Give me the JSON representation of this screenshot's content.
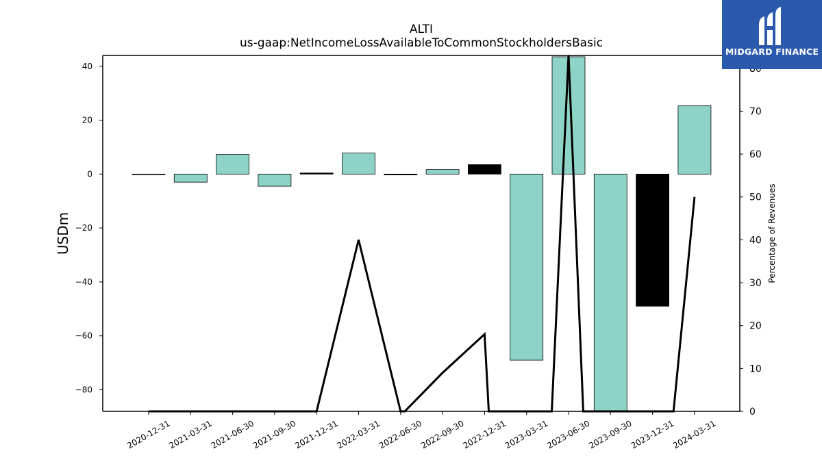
{
  "chart_data": {
    "type": "bar",
    "title": "ALTI",
    "subtitle": "us-gaap:NetIncomeLossAvailableToCommonStockholdersBasic",
    "ylabel": "USDm",
    "y2label": "Percentage of Revenues",
    "categories": [
      "2020-12-31",
      "2021-03-31",
      "2021-06-30",
      "2021-09-30",
      "2021-12-31",
      "2022-03-31",
      "2022-06-30",
      "2022-09-30",
      "2022-12-31",
      "2023-03-31",
      "2023-06-30",
      "2023-09-30",
      "2023-12-31",
      "2024-03-31"
    ],
    "values": [
      0.0,
      -3.0,
      7.3,
      -4.5,
      0.4,
      7.8,
      -0.3,
      1.7,
      3.5,
      -69.0,
      43.5,
      -88.0,
      -49.0,
      25.3
    ],
    "bar_colors": [
      "#8dd3c7",
      "#8dd3c7",
      "#8dd3c7",
      "#8dd3c7",
      "#000000",
      "#8dd3c7",
      "#000000",
      "#8dd3c7",
      "#000000",
      "#8dd3c7",
      "#8dd3c7",
      "#8dd3c7",
      "#000000",
      "#8dd3c7"
    ],
    "ylim": [
      -88,
      44
    ],
    "yticks": [
      40,
      20,
      0,
      -20,
      -40,
      -60,
      -80
    ],
    "y2lim": [
      0,
      83
    ],
    "y2ticks": [
      0,
      10,
      20,
      30,
      40,
      50,
      60,
      70,
      80
    ],
    "line": {
      "name": "Percentage of Revenues",
      "points": [
        [
          0,
          0
        ],
        [
          1,
          0
        ],
        [
          2,
          0
        ],
        [
          3,
          0
        ],
        [
          4,
          0
        ],
        [
          5,
          40
        ],
        [
          6,
          0
        ],
        [
          6.1,
          0
        ],
        [
          7,
          9
        ],
        [
          8,
          18
        ],
        [
          8.1,
          0
        ],
        [
          9.6,
          0
        ],
        [
          10,
          83
        ],
        [
          10.35,
          0
        ],
        [
          11.6,
          0
        ],
        [
          12.5,
          0
        ],
        [
          13,
          50
        ]
      ]
    },
    "grid": false,
    "legend": "none"
  },
  "logo": {
    "text": "MIDGARD FINANCE",
    "color": "#2b5aad"
  }
}
